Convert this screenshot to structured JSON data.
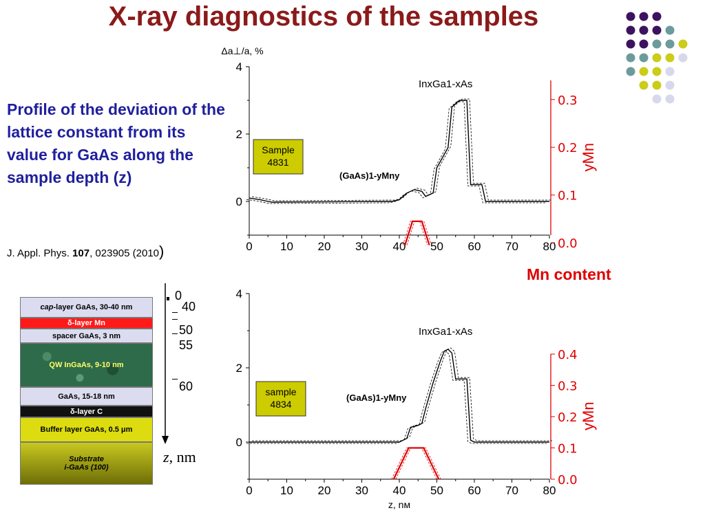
{
  "title": "X-ray diagnostics of the samples",
  "description": "Profile of the deviation of the lattice constant from its value for GaAs along the sample depth (z)",
  "reference": {
    "prefix": "J. Appl. Phys. ",
    "volume": "107",
    "rest": ", 023905 (2010",
    "close": ")"
  },
  "mn_content_label": "Mn content",
  "colors": {
    "title": "#8b1a1a",
    "description": "#1f1f9e",
    "mn_axis": "#e00000",
    "box_fill": "#cccc00"
  },
  "decor_dots": [
    "#3d1360",
    "#3d1360",
    "#3d1360",
    "#3d1360",
    "#3d1360",
    "#3d1360",
    "#6d9b9b",
    "#3d1360",
    "#3d1360",
    "#6d9b9b",
    "#6d9b9b",
    "#cccc1a",
    "#6d9b9b",
    "#6d9b9b",
    "#cccc1a",
    "#cccc1a",
    "#d8d8ec",
    "#6d9b9b",
    "#cccc1a",
    "#cccc1a",
    "#d8d8ec",
    "#cccc1a",
    "#cccc1a",
    "#d8d8ec",
    "#d8d8ec",
    "#d8d8ec"
  ],
  "layers": [
    {
      "label_em": "cap",
      "label": "-layer GaAs, 30-40 nm",
      "fill": "#dcdcf0",
      "color": "#000000"
    },
    {
      "label": "δ-layer Mn",
      "fill": "#ff1a1a",
      "color": "#ffffff"
    },
    {
      "label": "spacer GaAs, 3 nm",
      "fill": "#dcdcf0",
      "color": "#000000"
    },
    {
      "label": "QW InGaAs, 9-10 nm",
      "fill": "#2e6b4a",
      "color": "#ffff66"
    },
    {
      "label": "GaAs, 15-18 nm",
      "fill": "#dcdcf0",
      "color": "#000000"
    },
    {
      "label": "δ-layer C",
      "fill": "#111111",
      "color": "#ffffff"
    },
    {
      "label": "Buffer layer GaAs, 0.5 μm",
      "fill": "#dcdc10",
      "color": "#000000"
    },
    {
      "label": "Substrate\ni-GaAs (100)",
      "fill": "#9a9a10",
      "color": "#000000"
    }
  ],
  "depth_scale": {
    "labels": [
      "0",
      "40",
      "50",
      "55",
      "60"
    ],
    "unit_var": "z",
    "unit": ", nm"
  },
  "chart_data": [
    {
      "type": "line",
      "sample_label": "Sample\n4831",
      "left_axis_label": "Δa⊥/a, %",
      "left_ylim": [
        -1,
        4
      ],
      "left_ticks": [
        "0",
        "2",
        "4"
      ],
      "right_axis_label": "yMn",
      "right_ylim": [
        -0.02,
        0.34
      ],
      "right_ticks": [
        "0.0",
        "0.1",
        "0.2",
        "0.3"
      ],
      "xlim": [
        0,
        80
      ],
      "x_ticks": [
        "0",
        "10",
        "20",
        "30",
        "40",
        "50",
        "60",
        "70",
        "80"
      ],
      "annotations": [
        "InxGa1-xAs",
        "(GaAs)1-yMny"
      ],
      "series": [
        {
          "axis": "left",
          "x": [
            0,
            3,
            6,
            38,
            40,
            42,
            44,
            46,
            47,
            49,
            50,
            52,
            53,
            54,
            56,
            57,
            58,
            59,
            62,
            63,
            80
          ],
          "values": [
            0.1,
            0.05,
            -0.02,
            0,
            0.05,
            0.25,
            0.35,
            0.3,
            0.15,
            0.25,
            1.0,
            1.4,
            1.6,
            2.8,
            3.0,
            3.0,
            3.0,
            0.5,
            0.5,
            0,
            0
          ]
        },
        {
          "axis": "right",
          "x": [
            41.5,
            43.5,
            46,
            48
          ],
          "values": [
            -0.005,
            0.045,
            0.045,
            -0.005
          ]
        }
      ]
    },
    {
      "type": "line",
      "sample_label": "sample\n4834",
      "left_axis_label": "",
      "left_ylim": [
        -1,
        4
      ],
      "left_ticks": [
        "0",
        "2",
        "4"
      ],
      "right_axis_label": "yMn",
      "right_ylim": [
        0,
        0.4
      ],
      "right_ticks": [
        "0.0",
        "0.1",
        "0.2",
        "0.3",
        "0.4"
      ],
      "xlim": [
        0,
        80
      ],
      "x_ticks": [
        "0",
        "10",
        "20",
        "30",
        "40",
        "50",
        "60",
        "70",
        "80"
      ],
      "xlabel": "z, nм",
      "annotations": [
        "InxGa1-xAs",
        "(GaAs)1-yMny"
      ],
      "series": [
        {
          "axis": "left",
          "x": [
            0,
            40,
            42,
            43,
            45,
            46,
            47,
            49,
            51,
            52,
            53,
            54,
            55,
            58,
            59,
            60,
            80
          ],
          "values": [
            0,
            0,
            0.1,
            0.4,
            0.45,
            0.5,
            0.9,
            1.6,
            2.2,
            2.45,
            2.5,
            2.4,
            1.7,
            1.7,
            0.05,
            0,
            0
          ]
        },
        {
          "axis": "right",
          "x": [
            38.5,
            42.5,
            46.5,
            50.5
          ],
          "values": [
            0.0,
            0.1,
            0.1,
            0.0
          ]
        }
      ]
    }
  ]
}
